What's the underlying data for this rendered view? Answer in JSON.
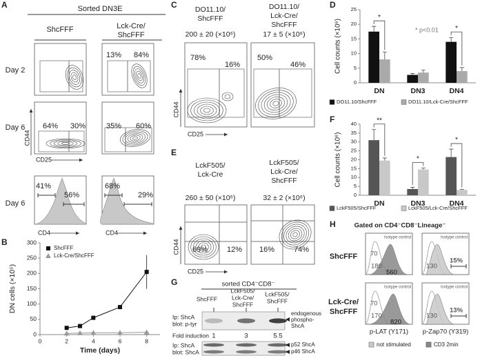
{
  "panels": {
    "labels": [
      "A",
      "B",
      "C",
      "D",
      "E",
      "F",
      "G",
      "H"
    ],
    "A": {
      "title": "Sorted DN3E",
      "columns": [
        [
          "ShcFFF"
        ],
        [
          "Lck-Cre/",
          "ShcFFF"
        ]
      ],
      "rows": [
        "Day 2",
        "Day 6",
        "Day 6"
      ],
      "y_axis": "CD44",
      "x_axis": "CD25",
      "hist_axis": "CD4",
      "gates": [
        "13%",
        "84%",
        "64%",
        "30%",
        "35%",
        "60%",
        "41%",
        "56%",
        "68%",
        "29%"
      ]
    },
    "C": {
      "columns": [
        [
          "DO11.10/",
          "ShcFFF"
        ],
        [
          "DO11.10/",
          "Lck-Cre/",
          "ShcFFF"
        ]
      ],
      "counts": [
        "200 ± 20 (×10⁶)",
        "17 ± 5 (×10⁶)"
      ],
      "gates": [
        "78%",
        "16%",
        "50%",
        "46%"
      ],
      "y_axis": "CD44",
      "x_axis": "CD25"
    },
    "E": {
      "columns": [
        [
          "LckF505/",
          "Lck-Cre"
        ],
        [
          "LckF505/",
          "Lck-Cre/",
          "ShcFFF"
        ]
      ],
      "counts": [
        "260 ± 50 (×10⁶)",
        "32 ± 2 (×10⁶)"
      ],
      "gates": [
        "69%",
        "12%",
        "16%",
        "74%"
      ],
      "y_axis": "CD44",
      "x_axis": "CD25"
    },
    "G": {
      "title": "sorted CD4⁻CD8⁻",
      "lanes": [
        [
          "ShcFFF"
        ],
        [
          "LckF505/",
          "Lck-Cre/",
          "ShcFFF"
        ],
        [
          "LckF505/",
          "ShcFFF"
        ]
      ],
      "blot1": [
        "Ip: ShcA",
        "blot: p-tyr"
      ],
      "band1": [
        "endogenous",
        "phospho-",
        "ShcA"
      ],
      "fold_label": "Fold induction",
      "fold": [
        "1",
        "3",
        "5.5"
      ],
      "blot2": [
        "Ip: ShcA",
        "blot: ShcA"
      ],
      "bands2": [
        "p52 ShcA",
        "p46 ShcA"
      ]
    },
    "H": {
      "title": "Gated on CD4⁻CD8⁻Lineage⁻",
      "rows": [
        [
          "ShcFFF"
        ],
        [
          "Lck-Cre/",
          "ShcFFF"
        ]
      ],
      "isotype": "Isotype control",
      "plots": [
        [
          "70",
          "180",
          "560"
        ],
        [
          "130",
          "15%"
        ],
        [
          "70",
          "170",
          "820"
        ],
        [
          "130",
          "13%"
        ]
      ],
      "x_axes": [
        "p-LAT (Y171)",
        "p-Zap70 (Y319)"
      ],
      "legend": [
        "not stimulated",
        "CD3 2min"
      ]
    }
  },
  "chart_data": [
    {
      "type": "line",
      "x_label": "Time (days)",
      "y_label": "DN cells (×10⁵)",
      "x": [
        2,
        3,
        4,
        6,
        8
      ],
      "xlim": [
        0,
        9
      ],
      "xticks": [
        0,
        2,
        4,
        6,
        8
      ],
      "ylim": [
        0,
        300
      ],
      "yticks": [
        0,
        50,
        100,
        150,
        200,
        250,
        300
      ],
      "legend": "upper left",
      "series": [
        {
          "name": "ShcFFF",
          "color": "#111111",
          "marker": "square",
          "values": [
            22,
            28,
            55,
            90,
            205
          ],
          "errors": [
            3,
            4,
            5,
            6,
            55
          ]
        },
        {
          "name": "Lck-Cre/ShcFFF",
          "color": "#999999",
          "marker": "triangle",
          "values": [
            4,
            5,
            6,
            6,
            8
          ],
          "errors": [
            1,
            1,
            1,
            1,
            2
          ]
        }
      ]
    },
    {
      "type": "bar",
      "y_label": "Cell counts (×10⁶)",
      "categories": [
        "DN",
        "DN3",
        "DN4"
      ],
      "ylim": [
        0,
        25
      ],
      "yticks": [
        0,
        5,
        10,
        15,
        20,
        25
      ],
      "annotation": "* p<0.01",
      "significance_labels": [
        "*",
        null,
        "*"
      ],
      "legend": "bottom",
      "series": [
        {
          "name": "DO11.10/ShcFFF",
          "color": "#111111",
          "values": [
            17.5,
            2.7,
            14
          ],
          "errors": [
            1.8,
            0.5,
            1.5
          ]
        },
        {
          "name": "DO11.10/Lck-Cre/ShcFFF",
          "color": "#aaaaaa",
          "values": [
            8,
            3.5,
            4
          ],
          "errors": [
            2.5,
            0.8,
            1.2
          ]
        }
      ]
    },
    {
      "type": "bar",
      "y_label": "Cell counts (×10⁶)",
      "categories": [
        "DN",
        "DN3",
        "DN4"
      ],
      "ylim": [
        0,
        40
      ],
      "yticks": [
        0,
        5,
        10,
        15,
        20,
        25,
        30,
        35,
        40
      ],
      "significance_labels": [
        "**",
        "*",
        "*"
      ],
      "legend": "bottom",
      "series": [
        {
          "name": "LckF505/ShcFFF",
          "color": "#555555",
          "values": [
            31,
            3.5,
            21.5
          ],
          "errors": [
            6,
            1,
            4.5
          ]
        },
        {
          "name": "LckF505/Lck-Cre/ShcFFF",
          "color": "#c8c8c8",
          "values": [
            19.5,
            14.5,
            3
          ],
          "errors": [
            1.5,
            0.8,
            0.3
          ]
        }
      ]
    }
  ]
}
